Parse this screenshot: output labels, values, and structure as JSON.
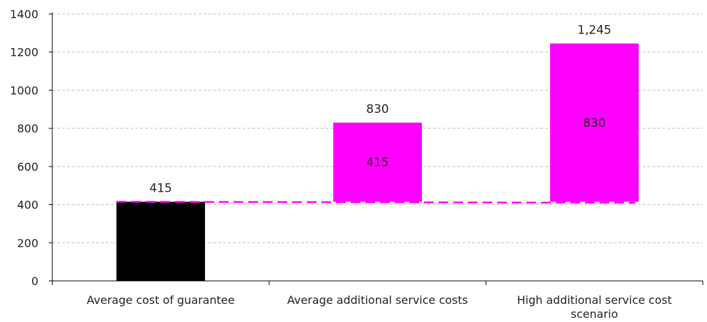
{
  "chart_data": {
    "type": "bar",
    "subtype": "waterfall",
    "categories": [
      [
        "Average cost of guarantee"
      ],
      [
        "Average additional service costs"
      ],
      [
        "High additional service cost",
        "scenario"
      ]
    ],
    "base": [
      0,
      415,
      415
    ],
    "values": [
      415,
      415,
      830
    ],
    "totals": [
      415,
      830,
      1245
    ],
    "segment_labels": [
      "",
      "415",
      "830"
    ],
    "total_labels": [
      "415",
      "830",
      "1,245"
    ],
    "colors": [
      "#000000",
      "#ff00ff",
      "#ff00ff"
    ],
    "reference_line": {
      "value": 415,
      "color": "#ff00ff",
      "style": "dashed"
    },
    "ylim": [
      0,
      1400
    ],
    "yticks": [
      0,
      200,
      400,
      600,
      800,
      1000,
      1200,
      1400
    ],
    "grid": true,
    "legend": "none"
  }
}
